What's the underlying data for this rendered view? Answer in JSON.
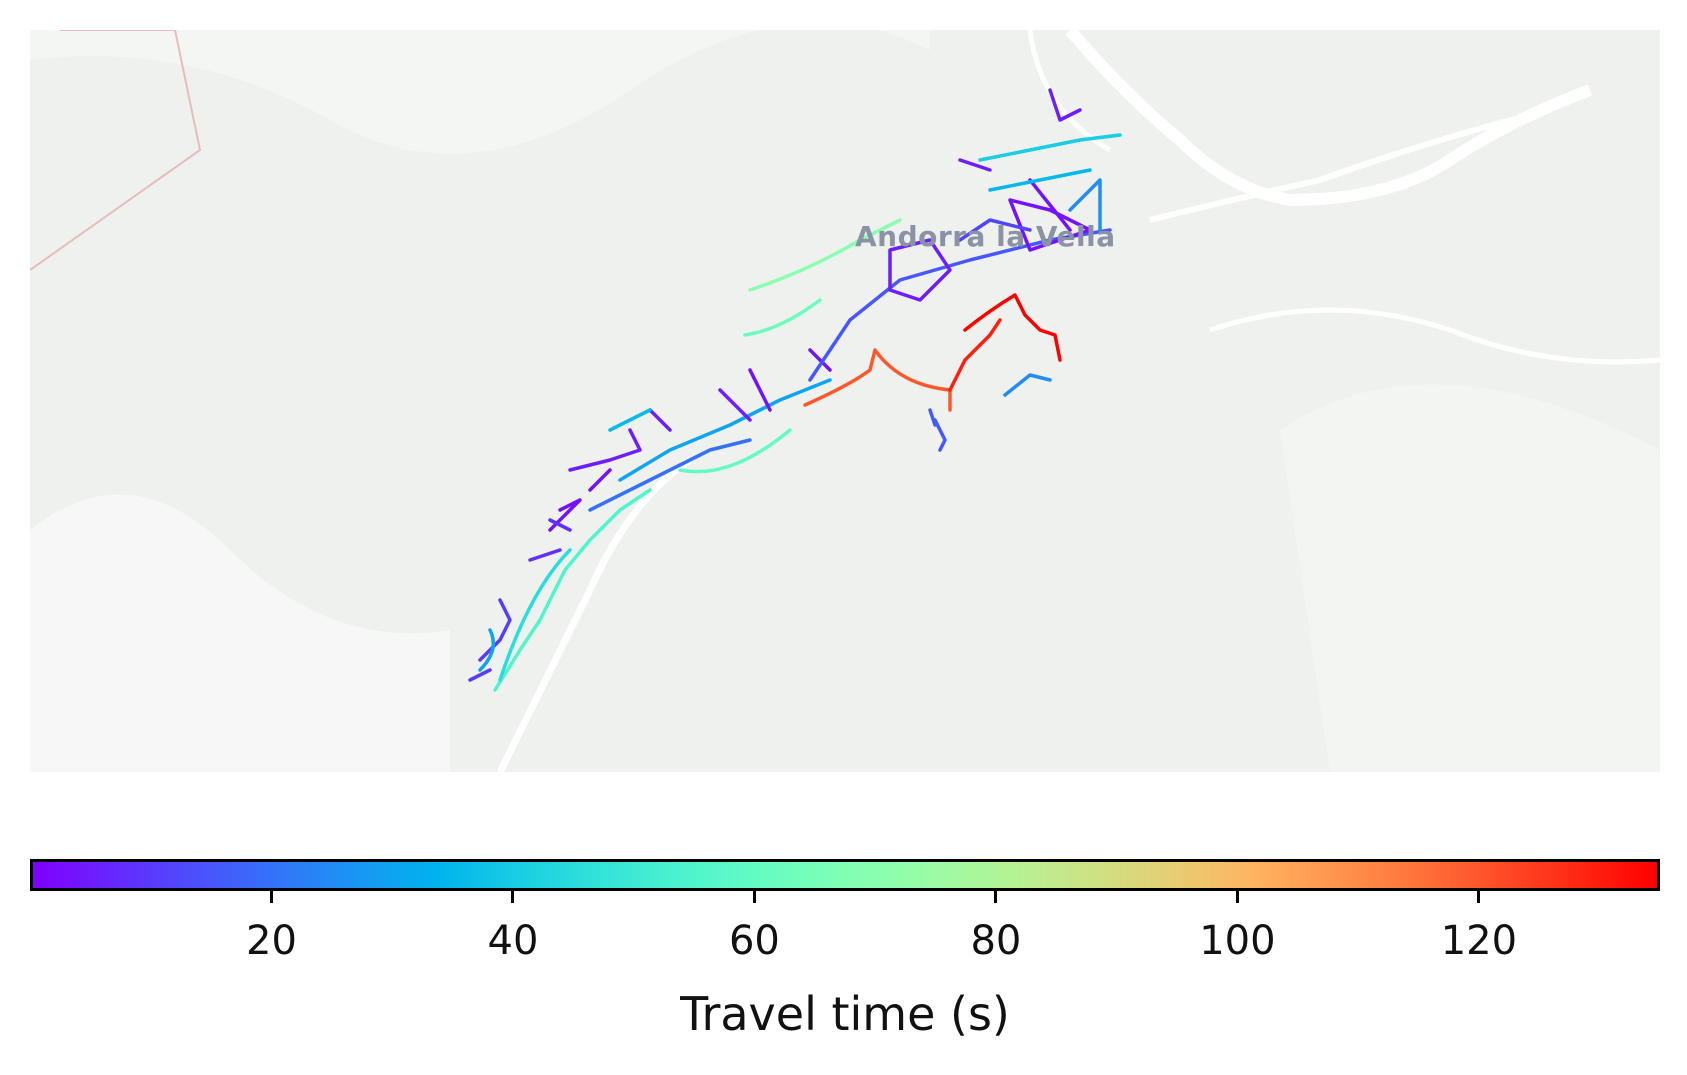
{
  "map": {
    "place_label": "Andorra la Vella",
    "basemap_color": "#eef1ee",
    "road_color": "#ffffff",
    "segments": [
      {
        "id": "sw-main-1",
        "value": 55
      },
      {
        "id": "sw-main-2",
        "value": 45
      },
      {
        "id": "sw-spur-1",
        "value": 10
      },
      {
        "id": "sw-spur-2",
        "value": 30
      },
      {
        "id": "mid-main-1",
        "value": 30
      },
      {
        "id": "mid-main-2",
        "value": 20
      },
      {
        "id": "mid-south",
        "value": 60
      },
      {
        "id": "mid-west-1",
        "value": 5
      },
      {
        "id": "mid-west-2",
        "value": 35
      },
      {
        "id": "mid-local-1",
        "value": 3
      },
      {
        "id": "mid-local-2",
        "value": 8
      },
      {
        "id": "north-green-1",
        "value": 70
      },
      {
        "id": "north-green-2",
        "value": 62
      },
      {
        "id": "center-main",
        "value": 15
      },
      {
        "id": "center-loop",
        "value": 5
      },
      {
        "id": "ne-grid-1",
        "value": 3
      },
      {
        "id": "ne-grid-2",
        "value": 12
      },
      {
        "id": "ne-grid-3",
        "value": 25
      },
      {
        "id": "ne-top-1",
        "value": 40
      },
      {
        "id": "ne-top-2",
        "value": 5
      },
      {
        "id": "ne-top-3",
        "value": 35
      },
      {
        "id": "east-stub",
        "value": 25
      },
      {
        "id": "red-loop-1",
        "value": 120
      },
      {
        "id": "red-loop-2",
        "value": 130
      },
      {
        "id": "red-loop-3",
        "value": 135
      },
      {
        "id": "red-tail",
        "value": 15
      }
    ]
  },
  "colorbar": {
    "title": "Travel time (s)",
    "min": 0,
    "max": 135,
    "colormap": "rainbow",
    "ticks": [
      20,
      40,
      60,
      80,
      100,
      120
    ],
    "tick_labels": [
      "20",
      "40",
      "60",
      "80",
      "100",
      "120"
    ]
  }
}
